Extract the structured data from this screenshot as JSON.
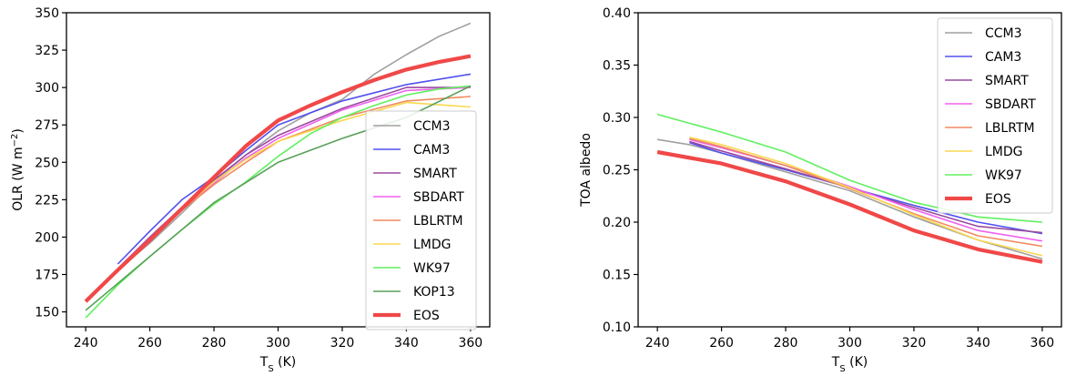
{
  "chart_data": [
    {
      "type": "line",
      "xlabel": "T",
      "xlabel_sub": "S",
      "xlabel_unit": " (K)",
      "ylabel": "OLR (W m",
      "ylabel_sup": "−2",
      "ylabel_end": ")",
      "xlim": [
        234,
        366
      ],
      "ylim": [
        140,
        350
      ],
      "xticks": [
        240,
        260,
        280,
        300,
        320,
        340,
        360
      ],
      "yticks": [
        150,
        175,
        200,
        225,
        250,
        275,
        300,
        325,
        350
      ],
      "ytick_labels": [
        "150",
        "175",
        "200",
        "225",
        "250",
        "275",
        "300",
        "325",
        "350"
      ],
      "legend_position": "lower-right",
      "series": [
        {
          "name": "CCM3",
          "color": "#a0a0a0",
          "width": 1.6,
          "x": [
            250,
            260,
            270,
            280,
            290,
            300,
            310,
            320,
            330,
            340,
            350,
            360
          ],
          "y": [
            178,
            196,
            216,
            237,
            255,
            271,
            283,
            292,
            309,
            322,
            334,
            343
          ]
        },
        {
          "name": "CAM3",
          "color": "#5050f0",
          "width": 1.6,
          "x": [
            250,
            260,
            270,
            280,
            290,
            300,
            320,
            340,
            360
          ],
          "y": [
            182,
            204,
            225,
            240,
            258,
            275,
            291,
            302,
            309
          ]
        },
        {
          "name": "SMART",
          "color": "#9a4aa0",
          "width": 1.6,
          "x": [
            250,
            260,
            270,
            280,
            290,
            300,
            320,
            340,
            360
          ],
          "y": [
            179,
            200,
            220,
            238,
            255,
            268,
            286,
            300,
            300
          ]
        },
        {
          "name": "SBDART",
          "color": "#f060f0",
          "width": 1.6,
          "x": [
            250,
            260,
            270,
            280,
            290,
            300,
            320,
            340,
            360
          ],
          "y": [
            179,
            199,
            219,
            236,
            253,
            266,
            285,
            298,
            300
          ]
        },
        {
          "name": "LBLRTM",
          "color": "#f08a60",
          "width": 1.6,
          "x": [
            250,
            260,
            270,
            280,
            290,
            300,
            320,
            340,
            360
          ],
          "y": [
            178,
            198,
            218,
            235,
            250,
            264,
            280,
            291,
            294
          ]
        },
        {
          "name": "LMDG",
          "color": "#f8d850",
          "width": 1.6,
          "x": [
            250,
            260,
            270,
            280,
            290,
            300,
            320,
            340,
            360
          ],
          "y": [
            179,
            199,
            219,
            237,
            252,
            264,
            278,
            290,
            287
          ]
        },
        {
          "name": "WK97",
          "color": "#60f060",
          "width": 1.6,
          "x": [
            240,
            250,
            260,
            270,
            280,
            290,
            300,
            310,
            320,
            330,
            340,
            350,
            360
          ],
          "y": [
            146,
            168,
            187,
            205,
            222,
            237,
            254,
            269,
            280,
            288,
            295,
            299,
            301
          ]
        },
        {
          "name": "KOP13",
          "color": "#5aa05a",
          "width": 1.6,
          "x": [
            240,
            260,
            280,
            300,
            320,
            340,
            360
          ],
          "y": [
            151,
            187,
            223,
            250,
            266,
            280,
            301
          ]
        },
        {
          "name": "EOS",
          "color": "#f04848",
          "width": 4.2,
          "x": [
            240,
            250,
            260,
            270,
            280,
            290,
            300,
            305,
            310,
            320,
            330,
            340,
            350,
            360
          ],
          "y": [
            157,
            178,
            198,
            219,
            240,
            261,
            278,
            283,
            288,
            297,
            305,
            312,
            317,
            321
          ]
        }
      ]
    },
    {
      "type": "line",
      "xlabel": "T",
      "xlabel_sub": "S",
      "xlabel_unit": " (K)",
      "ylabel": "TOA albedo",
      "ylabel_sup": "",
      "ylabel_end": "",
      "xlim": [
        234,
        366
      ],
      "ylim": [
        0.1,
        0.4
      ],
      "xticks": [
        240,
        260,
        280,
        300,
        320,
        340,
        360
      ],
      "yticks": [
        0.1,
        0.15,
        0.2,
        0.25,
        0.3,
        0.35,
        0.4
      ],
      "ytick_labels": [
        "0.10",
        "0.15",
        "0.20",
        "0.25",
        "0.30",
        "0.35",
        "0.40"
      ],
      "legend_position": "upper-right",
      "series": [
        {
          "name": "CCM3",
          "color": "#a0a0a0",
          "width": 1.6,
          "x": [
            240,
            250,
            260,
            280,
            300,
            320,
            340,
            360
          ],
          "y": [
            0.279,
            0.274,
            0.266,
            0.248,
            0.23,
            0.205,
            0.183,
            0.165
          ]
        },
        {
          "name": "CAM3",
          "color": "#5050f0",
          "width": 1.6,
          "x": [
            250,
            260,
            280,
            300,
            320,
            340,
            360
          ],
          "y": [
            0.276,
            0.266,
            0.25,
            0.233,
            0.216,
            0.2,
            0.189
          ]
        },
        {
          "name": "SMART",
          "color": "#9a4aa0",
          "width": 1.6,
          "x": [
            250,
            260,
            280,
            300,
            320,
            340,
            360
          ],
          "y": [
            0.277,
            0.268,
            0.251,
            0.233,
            0.214,
            0.196,
            0.19
          ]
        },
        {
          "name": "SBDART",
          "color": "#f060f0",
          "width": 1.6,
          "x": [
            250,
            260,
            280,
            300,
            320,
            340,
            360
          ],
          "y": [
            0.279,
            0.271,
            0.254,
            0.234,
            0.212,
            0.192,
            0.182
          ]
        },
        {
          "name": "LBLRTM",
          "color": "#f08a60",
          "width": 1.6,
          "x": [
            250,
            260,
            280,
            300,
            320,
            340,
            360
          ],
          "y": [
            0.28,
            0.272,
            0.254,
            0.232,
            0.208,
            0.187,
            0.177
          ]
        },
        {
          "name": "LMDG",
          "color": "#f8d850",
          "width": 1.6,
          "x": [
            250,
            260,
            280,
            300,
            320,
            340,
            360
          ],
          "y": [
            0.281,
            0.274,
            0.256,
            0.233,
            0.207,
            0.183,
            0.168
          ]
        },
        {
          "name": "WK97",
          "color": "#60f060",
          "width": 1.6,
          "x": [
            240,
            260,
            280,
            300,
            320,
            340,
            360
          ],
          "y": [
            0.303,
            0.286,
            0.267,
            0.24,
            0.219,
            0.205,
            0.2
          ]
        },
        {
          "name": "EOS",
          "color": "#f04848",
          "width": 4.2,
          "x": [
            240,
            260,
            280,
            300,
            320,
            340,
            360
          ],
          "y": [
            0.267,
            0.256,
            0.239,
            0.217,
            0.192,
            0.174,
            0.162
          ]
        }
      ]
    }
  ]
}
